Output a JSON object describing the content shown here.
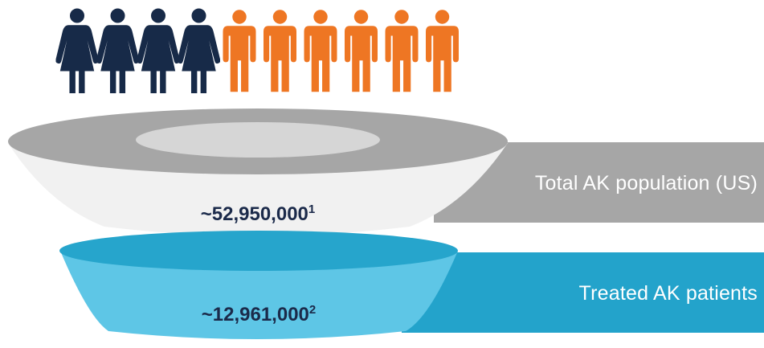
{
  "colors": {
    "female": "#172a48",
    "male": "#ee7623",
    "grey_band": "#a6a6a6",
    "grey_top": "#a6a6a6",
    "grey_inner": "#d6d6d6",
    "grey_body": "#f1f1f1",
    "blue_band": "#23a3cb",
    "blue_top": "#26a5cc",
    "blue_body": "#5ec6e6",
    "value_text": "#1b2a4a"
  },
  "people": {
    "female_count": 4,
    "male_count": 6,
    "female_icon": "female-person-icon",
    "male_icon": "male-person-icon"
  },
  "tiers": [
    {
      "label": "Total AK population (US)",
      "value": "~52,950,000",
      "ref": "1"
    },
    {
      "label": "Treated AK patients",
      "value": "~12,961,000",
      "ref": "2"
    }
  ]
}
